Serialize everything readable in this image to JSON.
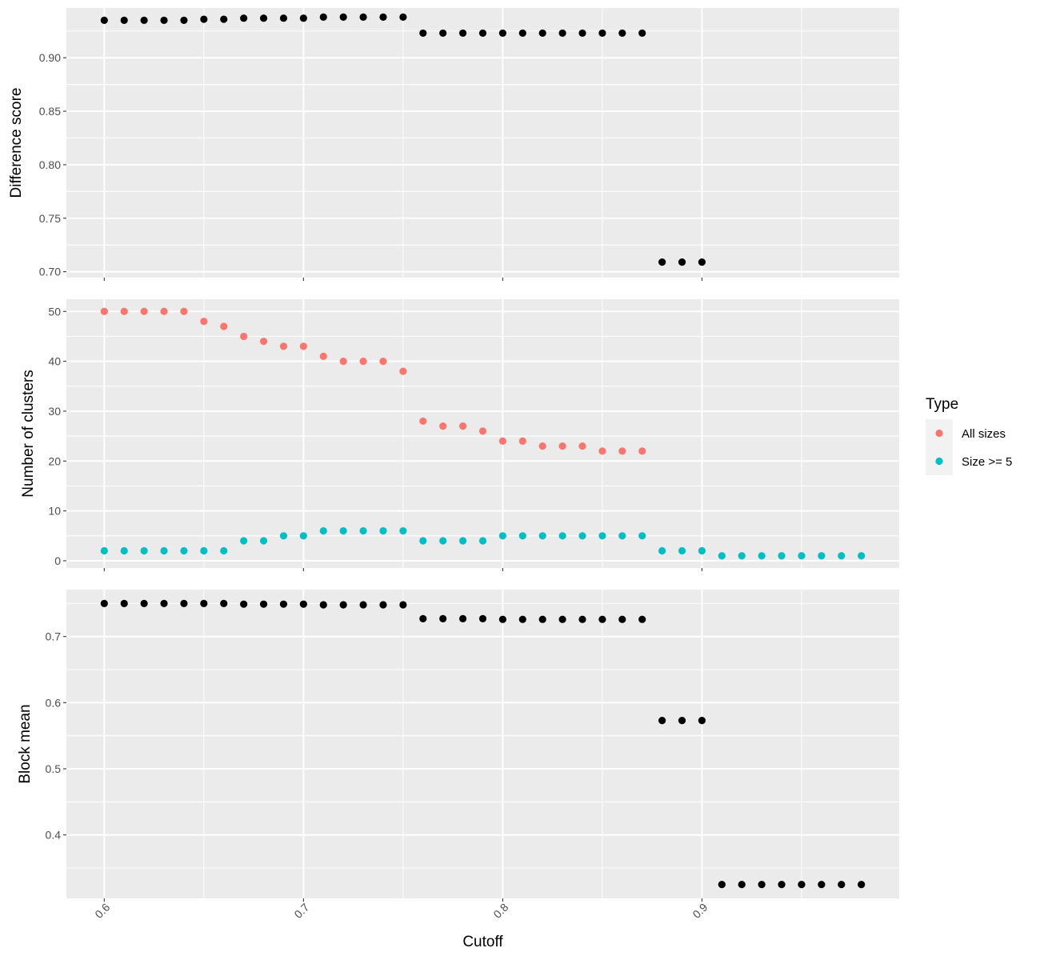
{
  "chart_data": {
    "type": "scatter",
    "x_label": "Cutoff",
    "x_range": [
      0.581,
      0.999
    ],
    "x_ticks": [
      0.6,
      0.7,
      0.8,
      0.9
    ],
    "x_tick_labels": [
      "0.6",
      "0.7",
      "0.8",
      "0.9"
    ],
    "x": [
      0.6,
      0.61,
      0.62,
      0.63,
      0.64,
      0.65,
      0.66,
      0.67,
      0.68,
      0.69,
      0.7,
      0.71,
      0.72,
      0.73,
      0.74,
      0.75,
      0.76,
      0.77,
      0.78,
      0.79,
      0.8,
      0.81,
      0.82,
      0.83,
      0.84,
      0.85,
      0.86,
      0.87,
      0.88,
      0.89,
      0.9,
      0.91,
      0.92,
      0.93,
      0.94,
      0.95,
      0.96,
      0.97,
      0.98
    ],
    "legend": {
      "title": "Type",
      "entries": [
        {
          "label": "All sizes",
          "color": "#F8766D"
        },
        {
          "label": "Size >= 5",
          "color": "#00BFC4"
        }
      ]
    },
    "panels": [
      {
        "ylabel": "Difference score",
        "ylim": [
          0.6945,
          0.9465
        ],
        "yticks": [
          0.7,
          0.75,
          0.8,
          0.85,
          0.9
        ],
        "ytick_labels": [
          "0.70",
          "0.75",
          "0.80",
          "0.85",
          "0.90"
        ],
        "series": [
          {
            "color": "#000000",
            "values": [
              0.935,
              0.935,
              0.935,
              0.935,
              0.935,
              0.936,
              0.936,
              0.937,
              0.937,
              0.937,
              0.937,
              0.938,
              0.938,
              0.938,
              0.938,
              0.938,
              0.923,
              0.923,
              0.923,
              0.923,
              0.923,
              0.923,
              0.923,
              0.923,
              0.923,
              0.923,
              0.923,
              0.923,
              0.709,
              0.709,
              0.709,
              null,
              null,
              null,
              null,
              null,
              null,
              null,
              null
            ]
          }
        ]
      },
      {
        "ylabel": "Number of clusters",
        "ylim": [
          -1.45,
          52.45
        ],
        "yticks": [
          0,
          10,
          20,
          30,
          40,
          50
        ],
        "ytick_labels": [
          "0",
          "10",
          "20",
          "30",
          "40",
          "50"
        ],
        "series": [
          {
            "name": "All sizes",
            "color": "#F8766D",
            "values": [
              50,
              50,
              50,
              50,
              50,
              48,
              47,
              45,
              44,
              43,
              43,
              41,
              40,
              40,
              40,
              38,
              28,
              27,
              27,
              26,
              24,
              24,
              23,
              23,
              23,
              22,
              22,
              22,
              null,
              null,
              null,
              null,
              null,
              null,
              null,
              null,
              null,
              null,
              null
            ]
          },
          {
            "name": "Size >= 5",
            "color": "#00BFC4",
            "values": [
              2,
              2,
              2,
              2,
              2,
              2,
              2,
              4,
              4,
              5,
              5,
              6,
              6,
              6,
              6,
              6,
              4,
              4,
              4,
              4,
              5,
              5,
              5,
              5,
              5,
              5,
              5,
              5,
              2,
              2,
              2,
              1,
              1,
              1,
              1,
              1,
              1,
              1,
              1
            ]
          }
        ]
      },
      {
        "ylabel": "Block mean",
        "ylim": [
          0.304,
          0.771
        ],
        "yticks": [
          0.4,
          0.5,
          0.6,
          0.7
        ],
        "ytick_labels": [
          "0.4",
          "0.5",
          "0.6",
          "0.7"
        ],
        "series": [
          {
            "color": "#000000",
            "values": [
              0.75,
              0.75,
              0.75,
              0.75,
              0.75,
              0.75,
              0.75,
              0.749,
              0.749,
              0.749,
              0.749,
              0.748,
              0.748,
              0.748,
              0.748,
              0.748,
              0.727,
              0.727,
              0.727,
              0.727,
              0.726,
              0.726,
              0.726,
              0.726,
              0.726,
              0.726,
              0.726,
              0.726,
              0.573,
              0.573,
              0.573,
              0.325,
              0.325,
              0.325,
              0.325,
              0.325,
              0.325,
              0.325,
              0.325
            ]
          }
        ]
      }
    ]
  }
}
